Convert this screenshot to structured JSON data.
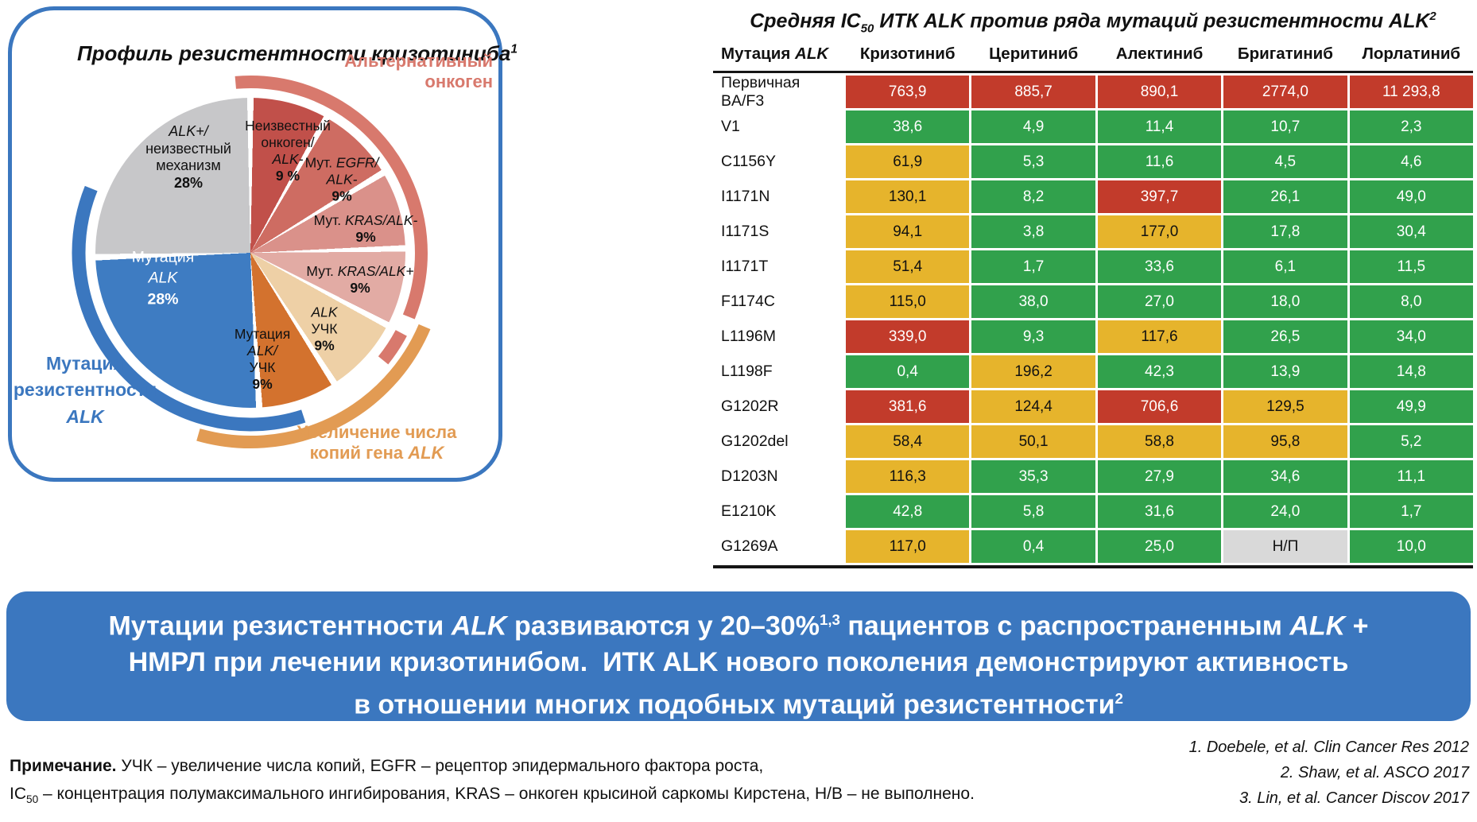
{
  "colors": {
    "brand_blue": "#3b77bf",
    "cell_green": "#31a14c",
    "cell_yellow": "#e6b42c",
    "cell_red": "#c23b2b",
    "cell_na_gray": "#d9d9d9",
    "arc_red": "#d8796d",
    "arc_orange": "#e29b53",
    "arc_blue": "#3b77bf"
  },
  "chart_data": [
    {
      "type": "pie",
      "title": "Профиль резистентности кризотиниба",
      "title_ref": "1",
      "title_rich": [
        {
          "t": "Профиль резистентности кризотиниба"
        },
        {
          "t": "1",
          "f": "sup"
        }
      ],
      "units": "percent",
      "slices": [
        {
          "name": "Неизвестный онкоген/ALK-",
          "value": 9,
          "color": "#c1504a",
          "label_rich": [
            {
              "t": "Неизвестный",
              "br": 1
            },
            {
              "t": "онкоген/",
              "br": 1
            },
            {
              "t": "ALK-",
              "f": "i",
              "br": 1
            },
            {
              "t": "9 %",
              "f": "b"
            }
          ]
        },
        {
          "name": "Мут. EGFR/ALK-",
          "value": 9,
          "color": "#ce6c62",
          "label_rich": [
            {
              "t": "Мут. "
            },
            {
              "t": "EGFR/",
              "f": "i",
              "br": 1
            },
            {
              "t": "ALK-",
              "f": "i",
              "br": 1
            },
            {
              "t": "9%",
              "f": "b"
            }
          ]
        },
        {
          "name": "Мут. KRAS/ALK-",
          "value": 9,
          "color": "#da918a",
          "label_rich": [
            {
              "t": "Мут. "
            },
            {
              "t": "KRAS/ALK-",
              "f": "i",
              "br": 1
            },
            {
              "t": "9%",
              "f": "b"
            }
          ]
        },
        {
          "name": "Мут. KRAS/ALK+",
          "value": 9,
          "color": "#e2aba4",
          "label_rich": [
            {
              "t": "Мут. "
            },
            {
              "t": "KRAS/ALK+",
              "f": "i",
              "br": 1
            },
            {
              "t": "9%",
              "f": "b"
            }
          ]
        },
        {
          "name": "ALK УЧК",
          "value": 9,
          "color": "#eed0a6",
          "label_rich": [
            {
              "t": "ALK",
              "f": "i",
              "br": 1
            },
            {
              "t": "УЧК",
              "br": 1
            },
            {
              "t": "9%",
              "f": "b"
            }
          ]
        },
        {
          "name": "Мутация ALK/УЧК",
          "value": 9,
          "color": "#d3722e",
          "label_rich": [
            {
              "t": "Мутация",
              "br": 1
            },
            {
              "t": "ALK/",
              "f": "i",
              "br": 1
            },
            {
              "t": "УЧК",
              "br": 1
            },
            {
              "t": "9%",
              "f": "b"
            }
          ]
        },
        {
          "name": "Мутация ALK",
          "value": 28,
          "color": "#3e7cc2",
          "label_rich": [
            {
              "t": "Мутация",
              "br": 1
            },
            {
              "t": "ALK",
              "f": "i",
              "br": 1
            },
            {
              "t": "28%",
              "f": "b"
            }
          ]
        },
        {
          "name": "ALK+/неизвестный механизм",
          "value": 28,
          "color": "#c7c7c9",
          "label_rich": [
            {
              "t": "ALK+/",
              "f": "i",
              "br": 1
            },
            {
              "t": "неизвестный",
              "br": 1
            },
            {
              "t": "механизм",
              "br": 1
            },
            {
              "t": "28%",
              "f": "b"
            }
          ]
        }
      ],
      "groups": [
        {
          "name": "Альтернативный онкоген",
          "color": "#d8796d",
          "label_rich": [
            {
              "t": "Альтернативный",
              "br": 1
            },
            {
              "t": "онкоген"
            }
          ]
        },
        {
          "name": "Увеличение числа копий гена ALK",
          "color": "#e29b53",
          "label_rich": [
            {
              "t": "Увеличение числа",
              "br": 1
            },
            {
              "t": "копий гена "
            },
            {
              "t": "ALK",
              "f": "i"
            }
          ]
        },
        {
          "name": "Мутация резистентности ALK",
          "color": "#3b77bf",
          "label_rich": [
            {
              "t": "Мутация",
              "br": 1
            },
            {
              "t": "резистентности",
              "br": 1
            },
            {
              "t": "ALK",
              "f": "i"
            }
          ]
        }
      ]
    },
    {
      "type": "table",
      "title": "Средняя IC50 ИТК ALK против ряда мутаций резистентности ALK",
      "title_ref": "2",
      "title_rich": [
        {
          "t": "Средняя IC"
        },
        {
          "t": "50",
          "f": "sub"
        },
        {
          "t": " ИТК ALK против ряда мутаций резистентности ALK"
        },
        {
          "t": "2",
          "f": "sup"
        }
      ],
      "row_header_rich": [
        {
          "t": "Мутация ",
          "f": "b"
        },
        {
          "t": "ALK",
          "f": "bi"
        }
      ],
      "columns": [
        "Кризотиниб",
        "Церитиниб",
        "Алектиниб",
        "Бригатиниб",
        "Лорлатиниб"
      ],
      "color_key": {
        "green": "#31a14c",
        "yellow": "#e6b42c",
        "red": "#c23b2b",
        "na": "#d9d9d9"
      },
      "rows": [
        {
          "mutation": "Первичная BA/F3",
          "cells": [
            {
              "v": "763,9",
              "c": "red"
            },
            {
              "v": "885,7",
              "c": "red"
            },
            {
              "v": "890,1",
              "c": "red"
            },
            {
              "v": "2774,0",
              "c": "red"
            },
            {
              "v": "11 293,8",
              "c": "red"
            }
          ]
        },
        {
          "mutation": "V1",
          "cells": [
            {
              "v": "38,6",
              "c": "green"
            },
            {
              "v": "4,9",
              "c": "green"
            },
            {
              "v": "11,4",
              "c": "green"
            },
            {
              "v": "10,7",
              "c": "green"
            },
            {
              "v": "2,3",
              "c": "green"
            }
          ]
        },
        {
          "mutation": "C1156Y",
          "cells": [
            {
              "v": "61,9",
              "c": "yellow"
            },
            {
              "v": "5,3",
              "c": "green"
            },
            {
              "v": "11,6",
              "c": "green"
            },
            {
              "v": "4,5",
              "c": "green"
            },
            {
              "v": "4,6",
              "c": "green"
            }
          ]
        },
        {
          "mutation": "I1171N",
          "cells": [
            {
              "v": "130,1",
              "c": "yellow"
            },
            {
              "v": "8,2",
              "c": "green"
            },
            {
              "v": "397,7",
              "c": "red"
            },
            {
              "v": "26,1",
              "c": "green"
            },
            {
              "v": "49,0",
              "c": "green"
            }
          ]
        },
        {
          "mutation": "I1171S",
          "cells": [
            {
              "v": "94,1",
              "c": "yellow"
            },
            {
              "v": "3,8",
              "c": "green"
            },
            {
              "v": "177,0",
              "c": "yellow"
            },
            {
              "v": "17,8",
              "c": "green"
            },
            {
              "v": "30,4",
              "c": "green"
            }
          ]
        },
        {
          "mutation": "I1171T",
          "cells": [
            {
              "v": "51,4",
              "c": "yellow"
            },
            {
              "v": "1,7",
              "c": "green"
            },
            {
              "v": "33,6",
              "c": "green"
            },
            {
              "v": "6,1",
              "c": "green"
            },
            {
              "v": "11,5",
              "c": "green"
            }
          ]
        },
        {
          "mutation": "F1174C",
          "cells": [
            {
              "v": "115,0",
              "c": "yellow"
            },
            {
              "v": "38,0",
              "c": "green"
            },
            {
              "v": "27,0",
              "c": "green"
            },
            {
              "v": "18,0",
              "c": "green"
            },
            {
              "v": "8,0",
              "c": "green"
            }
          ]
        },
        {
          "mutation": "L1196M",
          "cells": [
            {
              "v": "339,0",
              "c": "red"
            },
            {
              "v": "9,3",
              "c": "green"
            },
            {
              "v": "117,6",
              "c": "yellow"
            },
            {
              "v": "26,5",
              "c": "green"
            },
            {
              "v": "34,0",
              "c": "green"
            }
          ]
        },
        {
          "mutation": "L1198F",
          "cells": [
            {
              "v": "0,4",
              "c": "green"
            },
            {
              "v": "196,2",
              "c": "yellow"
            },
            {
              "v": "42,3",
              "c": "green"
            },
            {
              "v": "13,9",
              "c": "green"
            },
            {
              "v": "14,8",
              "c": "green"
            }
          ]
        },
        {
          "mutation": "G1202R",
          "cells": [
            {
              "v": "381,6",
              "c": "red"
            },
            {
              "v": "124,4",
              "c": "yellow"
            },
            {
              "v": "706,6",
              "c": "red"
            },
            {
              "v": "129,5",
              "c": "yellow"
            },
            {
              "v": "49,9",
              "c": "green"
            }
          ]
        },
        {
          "mutation": "G1202del",
          "cells": [
            {
              "v": "58,4",
              "c": "yellow"
            },
            {
              "v": "50,1",
              "c": "yellow"
            },
            {
              "v": "58,8",
              "c": "yellow"
            },
            {
              "v": "95,8",
              "c": "yellow"
            },
            {
              "v": "5,2",
              "c": "green"
            }
          ]
        },
        {
          "mutation": "D1203N",
          "cells": [
            {
              "v": "116,3",
              "c": "yellow"
            },
            {
              "v": "35,3",
              "c": "green"
            },
            {
              "v": "27,9",
              "c": "green"
            },
            {
              "v": "34,6",
              "c": "green"
            },
            {
              "v": "11,1",
              "c": "green"
            }
          ]
        },
        {
          "mutation": "E1210K",
          "cells": [
            {
              "v": "42,8",
              "c": "green"
            },
            {
              "v": "5,8",
              "c": "green"
            },
            {
              "v": "31,6",
              "c": "green"
            },
            {
              "v": "24,0",
              "c": "green"
            },
            {
              "v": "1,7",
              "c": "green"
            }
          ]
        },
        {
          "mutation": "G1269A",
          "cells": [
            {
              "v": "117,0",
              "c": "yellow"
            },
            {
              "v": "0,4",
              "c": "green"
            },
            {
              "v": "25,0",
              "c": "green"
            },
            {
              "v": "Н/П",
              "c": "na"
            },
            {
              "v": "10,0",
              "c": "green"
            }
          ]
        }
      ]
    }
  ],
  "banner": {
    "rich": [
      {
        "t": "Мутации резистентности "
      },
      {
        "t": "ALK",
        "f": "i"
      },
      {
        "t": " развиваются у 20–30%"
      },
      {
        "t": "1,3",
        "f": "sup"
      },
      {
        "t": " пациентов с распространенным "
      },
      {
        "t": "ALK",
        "f": "i"
      },
      {
        "t": " +",
        "br": 1
      },
      {
        "t": "НМРЛ при лечении кризотинибом.  ИТК ALK нового поколения демонстрируют активность",
        "br": 1
      },
      {
        "t": "в отношении многих подобных мутаций резистентности"
      },
      {
        "t": "2",
        "f": "sup"
      }
    ]
  },
  "footnote": {
    "line1": [
      {
        "t": "Примечание.",
        "f": "b"
      },
      {
        "t": " УЧК – увеличение числа копий, EGFR – рецептор эпидермального фактора роста,"
      }
    ],
    "line2": [
      {
        "t": "IC"
      },
      {
        "t": "50",
        "f": "sub"
      },
      {
        "t": " – концентрация полумаксимального ингибирования, KRAS – онкоген крысиной саркомы Кирстена, Н/В – не выполнено."
      }
    ]
  },
  "references": [
    "1. Doebele, et al. Clin Cancer Res 2012",
    "2. Shaw, et al. ASCO 2017",
    "3. Lin, et al. Cancer Discov 2017"
  ]
}
